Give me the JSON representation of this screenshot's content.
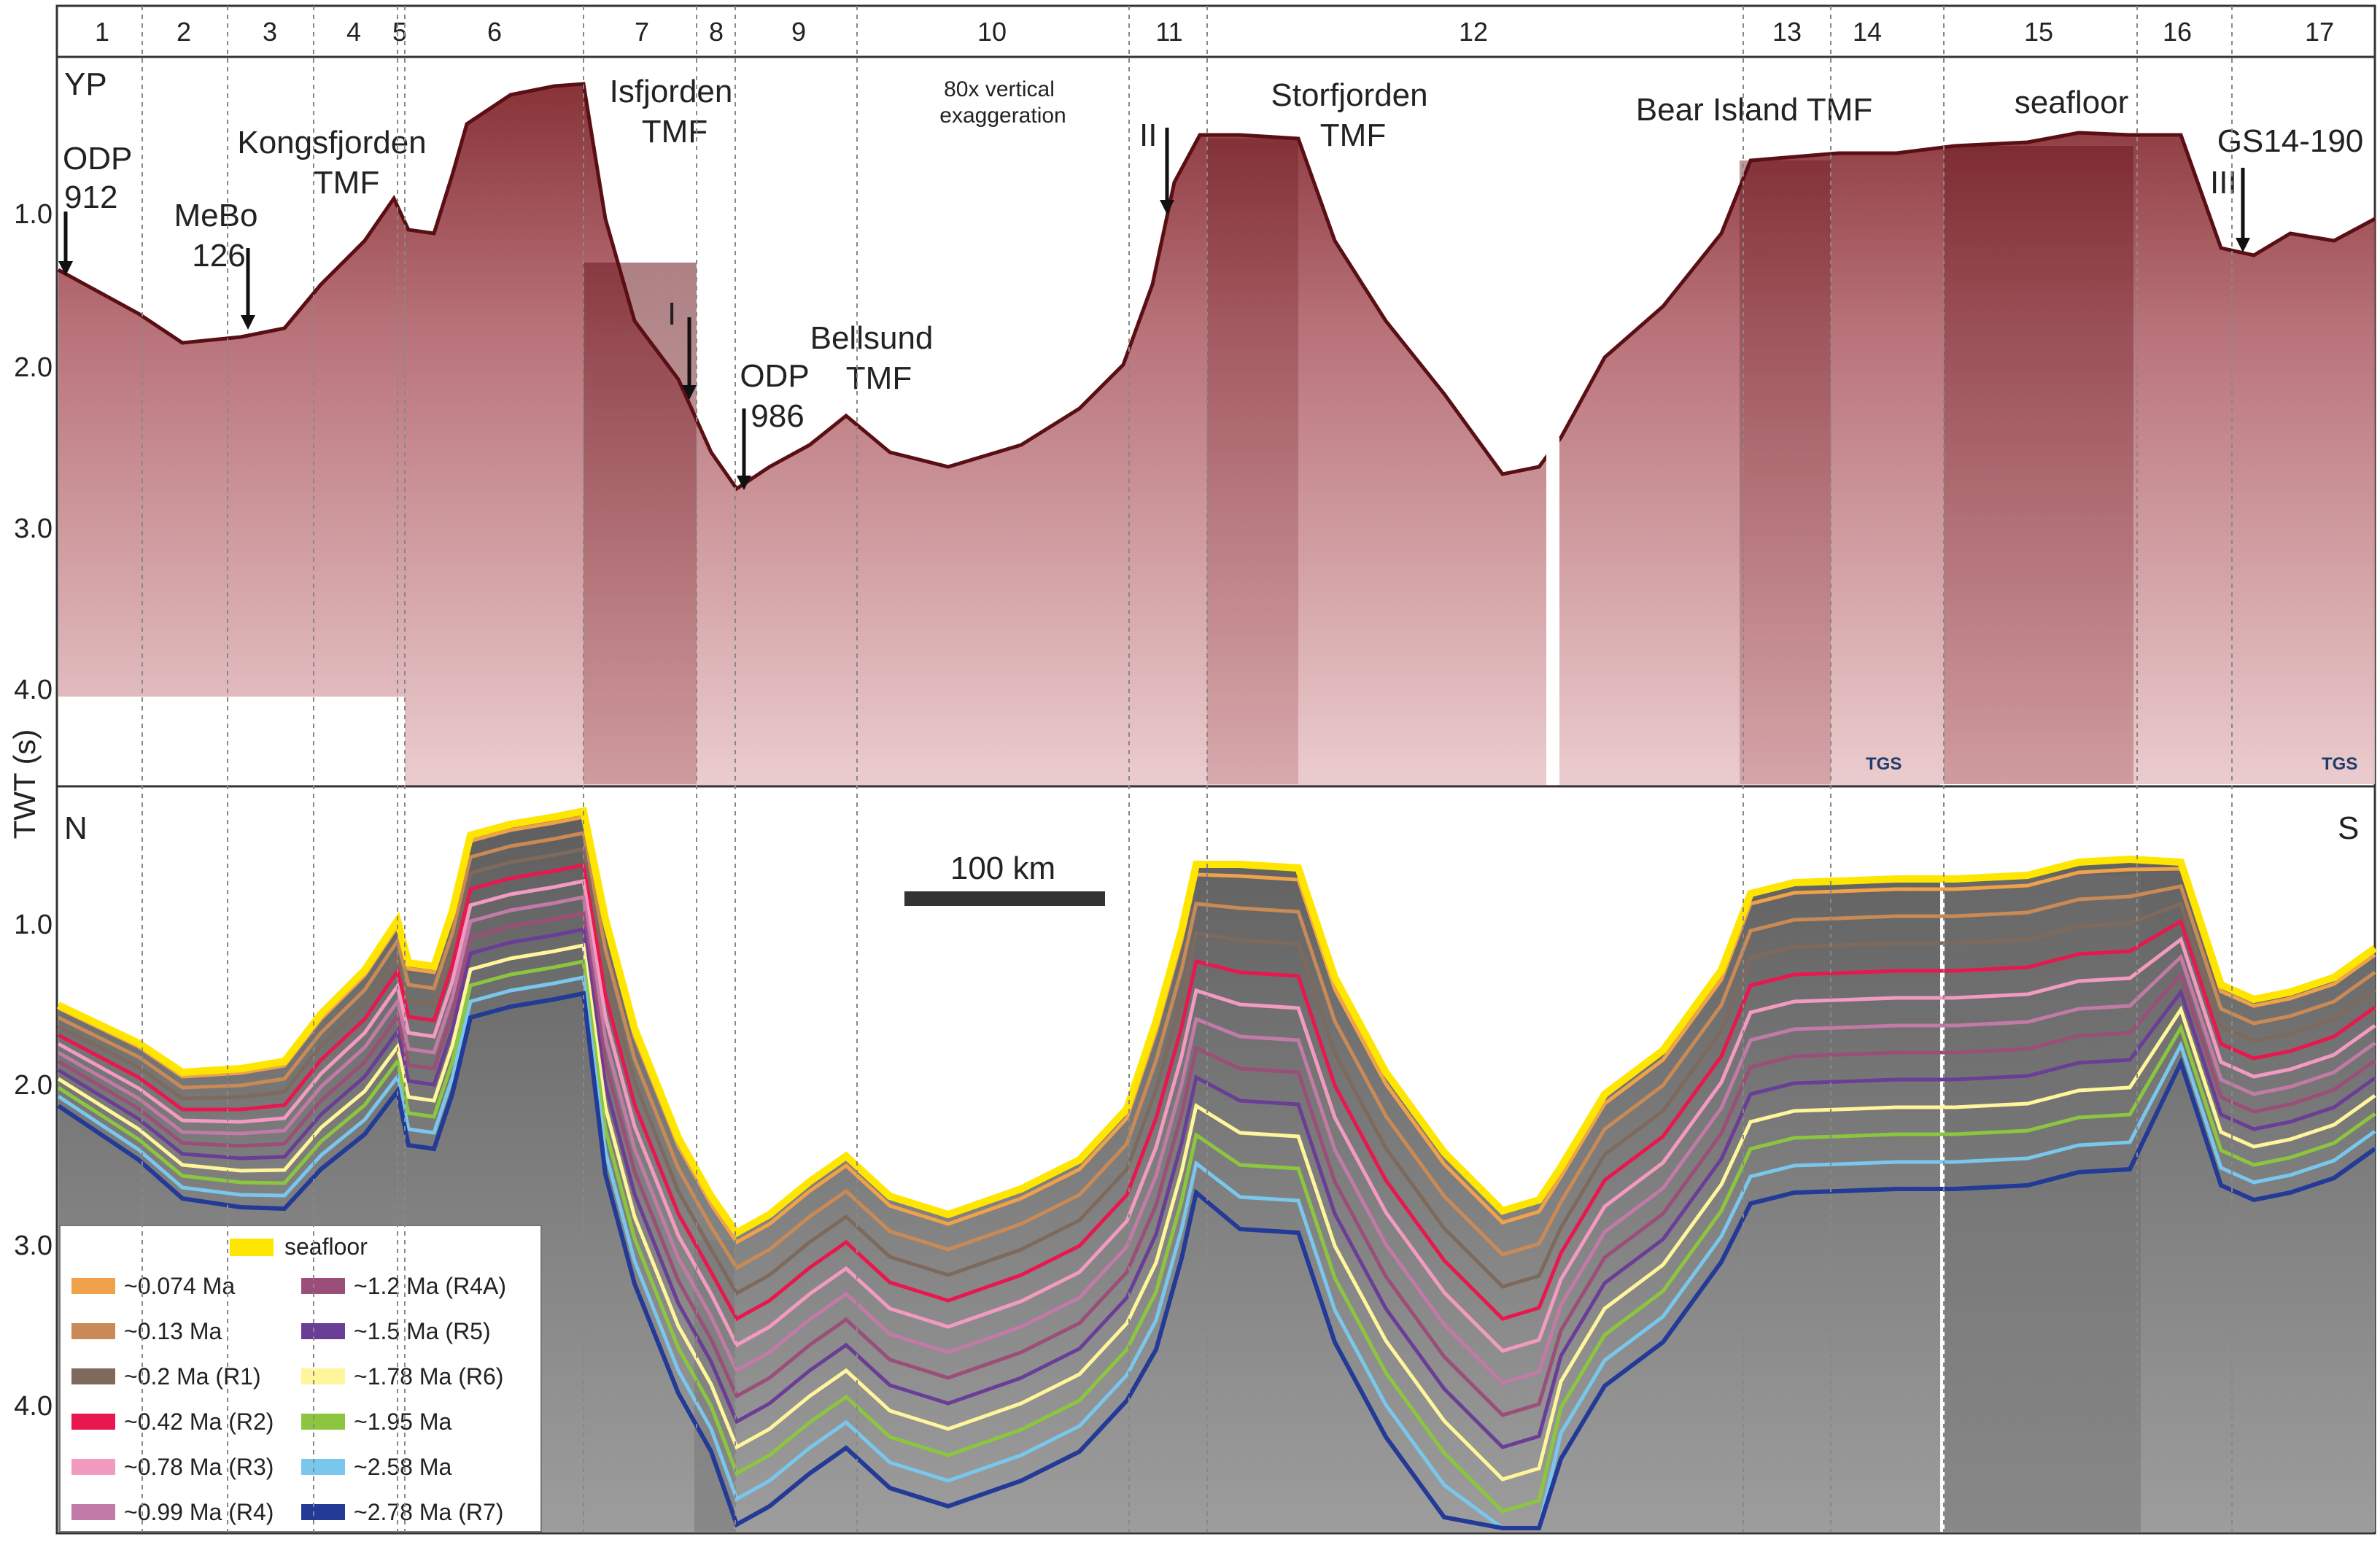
{
  "segments": [
    "1",
    "2",
    "3",
    "4",
    "5",
    "6",
    "7",
    "8",
    "9",
    "10",
    "11",
    "12",
    "13",
    "14",
    "15",
    "16",
    "17"
  ],
  "y_axis": {
    "label": "TWT (s)",
    "top_ticks": [
      "1.0",
      "2.0",
      "3.0",
      "4.0"
    ],
    "bottom_ticks": [
      "1.0",
      "2.0",
      "3.0",
      "4.0"
    ]
  },
  "top_panel": {
    "corner_label": "YP",
    "features": {
      "odp912_a": "ODP",
      "odp912_b": "912",
      "mebo_a": "MeBo",
      "mebo_b": "126",
      "kongs_a": "Kongsfjorden",
      "kongs_b": "TMF",
      "isfj_a": "Isfjorden",
      "isfj_b": "TMF",
      "roman_i": "I",
      "odp986_a": "ODP",
      "odp986_b": "986",
      "bells_a": "Bellsund",
      "bells_b": "TMF",
      "exag_a": "80x vertical",
      "exag_b": "exaggeration",
      "roman_ii": "II",
      "storf_a": "Storfjorden",
      "storf_b": "TMF",
      "bear": "Bear Island TMF",
      "seafloor": "seafloor",
      "gs": "GS14-190",
      "roman_iii": "III"
    },
    "credits": [
      "TGS",
      "TGS"
    ]
  },
  "bottom_panel": {
    "north": "N",
    "south": "S",
    "scale_bar": "100 km"
  },
  "legend": {
    "seafloor": "seafloor",
    "items": [
      {
        "label": "~0.074 Ma",
        "color": "#f0a24a"
      },
      {
        "label": "~0.13 Ma",
        "color": "#c98a55"
      },
      {
        "label": "~0.2 Ma (R1)",
        "color": "#7d6a5c"
      },
      {
        "label": "~0.42 Ma (R2)",
        "color": "#e8174e"
      },
      {
        "label": "~0.78 Ma (R3)",
        "color": "#f39ac0"
      },
      {
        "label": "~0.99 Ma (R4)",
        "color": "#c27aa6"
      },
      {
        "label": "~1.2 Ma (R4A)",
        "color": "#9b4e78"
      },
      {
        "label": "~1.5 Ma (R5)",
        "color": "#6a3d96"
      },
      {
        "label": "~1.78 Ma (R6)",
        "color": "#fff59a"
      },
      {
        "label": "~1.95 Ma",
        "color": "#8cc63f"
      },
      {
        "label": "~2.58 Ma",
        "color": "#79c7ec"
      },
      {
        "label": "~2.78 Ma (R7)",
        "color": "#233a96"
      }
    ],
    "seafloor_color": "#ffe600"
  }
}
